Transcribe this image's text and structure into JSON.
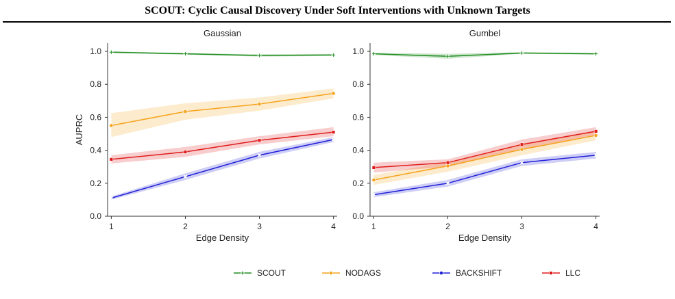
{
  "header": {
    "title": "SCOUT: Cyclic Causal Discovery Under Soft Interventions with Unknown Targets"
  },
  "legend": {
    "items": [
      {
        "name": "SCOUT",
        "color": "#1e8c1e",
        "marker": "plus"
      },
      {
        "name": "NODAGS",
        "color": "#f5a31a",
        "marker": "circle"
      },
      {
        "name": "BACKSHIFT",
        "color": "#1f1fd6",
        "marker": "x"
      },
      {
        "name": "LLC",
        "color": "#e01b1b",
        "marker": "square"
      }
    ]
  },
  "chart_data": [
    {
      "type": "line",
      "title": "Gaussian",
      "xlabel": "Edge Density",
      "ylabel": "AUPRC",
      "x": [
        1,
        2,
        3,
        4
      ],
      "xlim": [
        0.95,
        4.05
      ],
      "ylim": [
        0.0,
        1.05
      ],
      "yticks": [
        "0.0",
        "0.2",
        "0.4",
        "0.6",
        "0.8",
        "1.0"
      ],
      "xticks": [
        "1",
        "2",
        "3",
        "4"
      ],
      "grid": false,
      "series": [
        {
          "name": "SCOUT",
          "values": [
            0.995,
            0.985,
            0.975,
            0.978
          ],
          "lower": [
            0.99,
            0.98,
            0.968,
            0.972
          ],
          "upper": [
            1.0,
            0.99,
            0.982,
            0.984
          ]
        },
        {
          "name": "NODAGS",
          "values": [
            0.55,
            0.635,
            0.68,
            0.745
          ],
          "lower": [
            0.48,
            0.585,
            0.64,
            0.715
          ],
          "upper": [
            0.625,
            0.685,
            0.72,
            0.775
          ]
        },
        {
          "name": "BACKSHIFT",
          "values": [
            0.11,
            0.24,
            0.37,
            0.465
          ],
          "lower": [
            0.1,
            0.22,
            0.35,
            0.45
          ],
          "upper": [
            0.12,
            0.26,
            0.39,
            0.48
          ]
        },
        {
          "name": "LLC",
          "values": [
            0.345,
            0.39,
            0.46,
            0.51
          ],
          "lower": [
            0.32,
            0.36,
            0.435,
            0.485
          ],
          "upper": [
            0.37,
            0.42,
            0.485,
            0.54
          ]
        }
      ]
    },
    {
      "type": "line",
      "title": "Gumbel",
      "xlabel": "Edge Density",
      "ylabel": "",
      "x": [
        1,
        2,
        3,
        4
      ],
      "xlim": [
        0.95,
        4.05
      ],
      "ylim": [
        0.0,
        1.05
      ],
      "yticks": [
        "0.0",
        "0.2",
        "0.4",
        "0.6",
        "0.8",
        "1.0"
      ],
      "xticks": [
        "1",
        "2",
        "3",
        "4"
      ],
      "grid": false,
      "series": [
        {
          "name": "SCOUT",
          "values": [
            0.985,
            0.97,
            0.99,
            0.985
          ],
          "lower": [
            0.978,
            0.955,
            0.985,
            0.98
          ],
          "upper": [
            0.992,
            0.985,
            0.995,
            0.99
          ]
        },
        {
          "name": "NODAGS",
          "values": [
            0.22,
            0.305,
            0.405,
            0.49
          ],
          "lower": [
            0.19,
            0.27,
            0.37,
            0.46
          ],
          "upper": [
            0.25,
            0.33,
            0.44,
            0.52
          ]
        },
        {
          "name": "BACKSHIFT",
          "values": [
            0.13,
            0.2,
            0.325,
            0.37
          ],
          "lower": [
            0.115,
            0.18,
            0.305,
            0.35
          ],
          "upper": [
            0.145,
            0.22,
            0.345,
            0.39
          ]
        },
        {
          "name": "LLC",
          "values": [
            0.295,
            0.325,
            0.435,
            0.515
          ],
          "lower": [
            0.265,
            0.3,
            0.405,
            0.49
          ],
          "upper": [
            0.325,
            0.345,
            0.465,
            0.54
          ]
        }
      ]
    }
  ]
}
